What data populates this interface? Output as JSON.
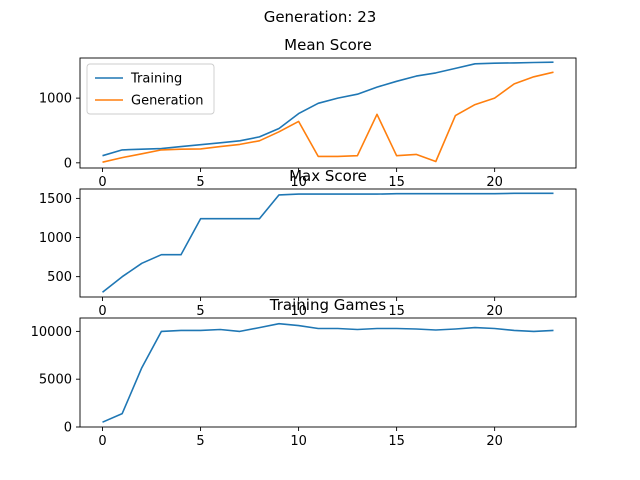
{
  "figure": {
    "suptitle": "Generation: 23"
  },
  "colors": {
    "training": "#1f77b4",
    "generation": "#ff7f0e",
    "axis": "#000000"
  },
  "chart_data": [
    {
      "type": "line",
      "title": "Mean Score",
      "xlabel": "",
      "ylabel": "",
      "xlim": [
        -1.15,
        24.15
      ],
      "ylim": [
        -80,
        1620
      ],
      "xticks": [
        0,
        5,
        10,
        15,
        20
      ],
      "yticks": [
        0,
        1000
      ],
      "legend": "upper-left",
      "grid": false,
      "x": [
        0,
        1,
        2,
        3,
        4,
        5,
        6,
        7,
        8,
        9,
        10,
        11,
        12,
        13,
        14,
        15,
        16,
        17,
        18,
        19,
        20,
        21,
        22,
        23
      ],
      "series": [
        {
          "name": "Training",
          "color": "#1f77b4",
          "values": [
            110,
            200,
            210,
            220,
            250,
            280,
            310,
            340,
            400,
            530,
            760,
            920,
            1000,
            1060,
            1170,
            1260,
            1340,
            1390,
            1460,
            1530,
            1540,
            1545,
            1550,
            1555
          ]
        },
        {
          "name": "Generation",
          "color": "#ff7f0e",
          "values": [
            10,
            80,
            140,
            200,
            210,
            215,
            250,
            285,
            340,
            480,
            640,
            100,
            100,
            110,
            750,
            110,
            130,
            20,
            730,
            900,
            1000,
            1220,
            1330,
            1400
          ]
        }
      ]
    },
    {
      "type": "line",
      "title": "Max Score",
      "xlabel": "",
      "ylabel": "",
      "xlim": [
        -1.15,
        24.15
      ],
      "ylim": [
        240,
        1620
      ],
      "xticks": [
        0,
        5,
        10,
        15,
        20
      ],
      "yticks": [
        500,
        1000,
        1500
      ],
      "grid": false,
      "x": [
        0,
        1,
        2,
        3,
        4,
        5,
        6,
        7,
        8,
        9,
        10,
        11,
        12,
        13,
        14,
        15,
        16,
        17,
        18,
        19,
        20,
        21,
        22,
        23
      ],
      "series": [
        {
          "name": "",
          "color": "#1f77b4",
          "values": [
            300,
            500,
            670,
            780,
            780,
            1240,
            1240,
            1240,
            1240,
            1545,
            1555,
            1555,
            1555,
            1555,
            1555,
            1560,
            1560,
            1560,
            1560,
            1560,
            1560,
            1565,
            1565,
            1565
          ]
        }
      ]
    },
    {
      "type": "line",
      "title": "Training Games",
      "xlabel": "",
      "ylabel": "",
      "xlim": [
        -1.15,
        24.15
      ],
      "ylim": [
        0,
        11400
      ],
      "xticks": [
        0,
        5,
        10,
        15,
        20
      ],
      "yticks": [
        0,
        5000,
        10000
      ],
      "grid": false,
      "x": [
        0,
        1,
        2,
        3,
        4,
        5,
        6,
        7,
        8,
        9,
        10,
        11,
        12,
        13,
        14,
        15,
        16,
        17,
        18,
        19,
        20,
        21,
        22,
        23
      ],
      "series": [
        {
          "name": "",
          "color": "#1f77b4",
          "values": [
            500,
            1400,
            6200,
            10000,
            10100,
            10100,
            10200,
            10000,
            10400,
            10800,
            10600,
            10300,
            10300,
            10200,
            10300,
            10300,
            10250,
            10150,
            10250,
            10400,
            10300,
            10100,
            10000,
            10100
          ]
        }
      ]
    }
  ]
}
